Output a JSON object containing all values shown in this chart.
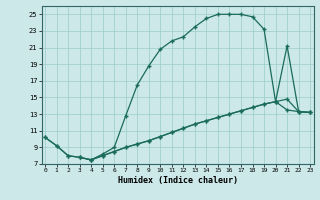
{
  "xlabel": "Humidex (Indice chaleur)",
  "bg_color": "#cce8e8",
  "line_color": "#1a6b5a",
  "grid_color": "#99cccc",
  "xticks": [
    0,
    1,
    2,
    3,
    4,
    5,
    6,
    7,
    8,
    9,
    10,
    11,
    12,
    13,
    14,
    15,
    16,
    17,
    18,
    19,
    20,
    21,
    22,
    23
  ],
  "yticks": [
    7,
    9,
    11,
    13,
    15,
    17,
    19,
    21,
    23,
    25
  ],
  "xlim": [
    -0.3,
    23.3
  ],
  "ylim": [
    7,
    26
  ],
  "c1x": [
    0,
    1,
    2,
    3,
    4,
    5,
    6,
    7,
    8,
    9,
    10,
    11,
    12,
    13,
    14,
    15,
    16,
    17,
    18,
    19,
    20,
    21,
    22,
    23
  ],
  "c1y": [
    10.2,
    9.2,
    8.0,
    7.8,
    7.5,
    8.2,
    9.0,
    12.8,
    16.5,
    18.8,
    20.8,
    21.8,
    22.3,
    23.5,
    24.5,
    25.0,
    25.0,
    25.0,
    24.7,
    23.2,
    14.5,
    13.5,
    13.3,
    13.2
  ],
  "c2x": [
    0,
    1,
    2,
    3,
    4,
    5,
    6,
    7,
    8,
    9,
    10,
    11,
    12,
    13,
    14,
    15,
    16,
    17,
    18,
    19,
    20,
    21,
    22,
    23
  ],
  "c2y": [
    10.2,
    9.2,
    8.0,
    7.8,
    7.5,
    8.0,
    8.5,
    9.0,
    9.4,
    9.8,
    10.3,
    10.8,
    11.3,
    11.8,
    12.2,
    12.6,
    13.0,
    13.4,
    13.8,
    14.2,
    14.5,
    21.2,
    13.3,
    13.2
  ],
  "c3x": [
    3,
    4,
    5,
    6,
    7,
    8,
    9,
    10,
    11,
    12,
    13,
    14,
    15,
    16,
    17,
    18,
    19,
    20,
    21,
    22,
    23
  ],
  "c3y": [
    7.8,
    7.5,
    8.0,
    8.5,
    9.0,
    9.4,
    9.8,
    10.3,
    10.8,
    11.3,
    11.8,
    12.2,
    12.6,
    13.0,
    13.4,
    13.8,
    14.2,
    14.5,
    14.8,
    13.3,
    13.2
  ]
}
